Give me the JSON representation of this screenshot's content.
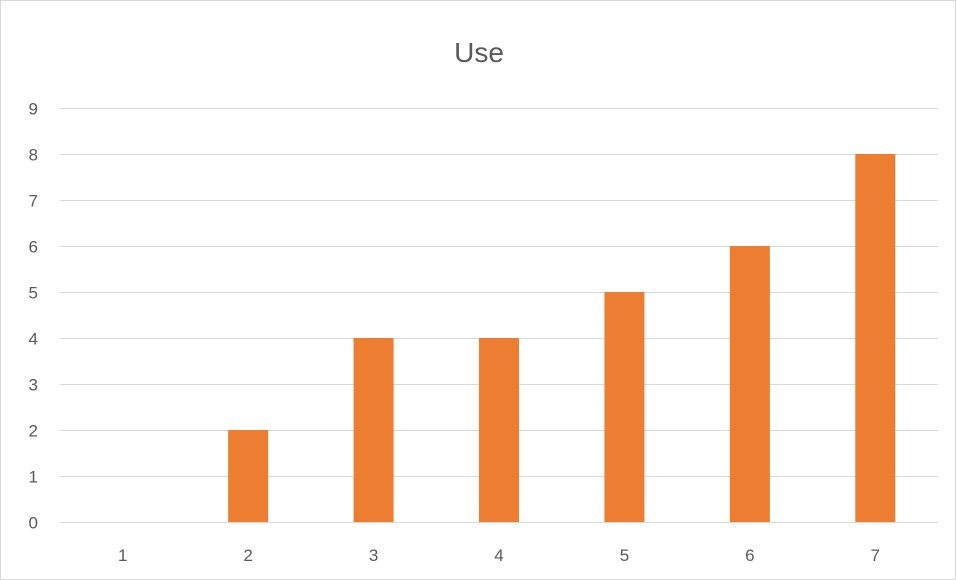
{
  "chart_data": {
    "type": "bar",
    "title": "Use",
    "categories": [
      "1",
      "2",
      "3",
      "4",
      "5",
      "6",
      "7"
    ],
    "values": [
      0,
      2,
      4,
      4,
      5,
      6,
      8
    ],
    "xlabel": "",
    "ylabel": "",
    "ylim": [
      0,
      9
    ],
    "yticks": [
      "0",
      "1",
      "2",
      "3",
      "4",
      "5",
      "6",
      "7",
      "8",
      "9"
    ],
    "grid": true,
    "legend": "none",
    "bar_color": "#ED7D31",
    "grid_color": "#D9D9D9",
    "text_color": "#595959"
  }
}
